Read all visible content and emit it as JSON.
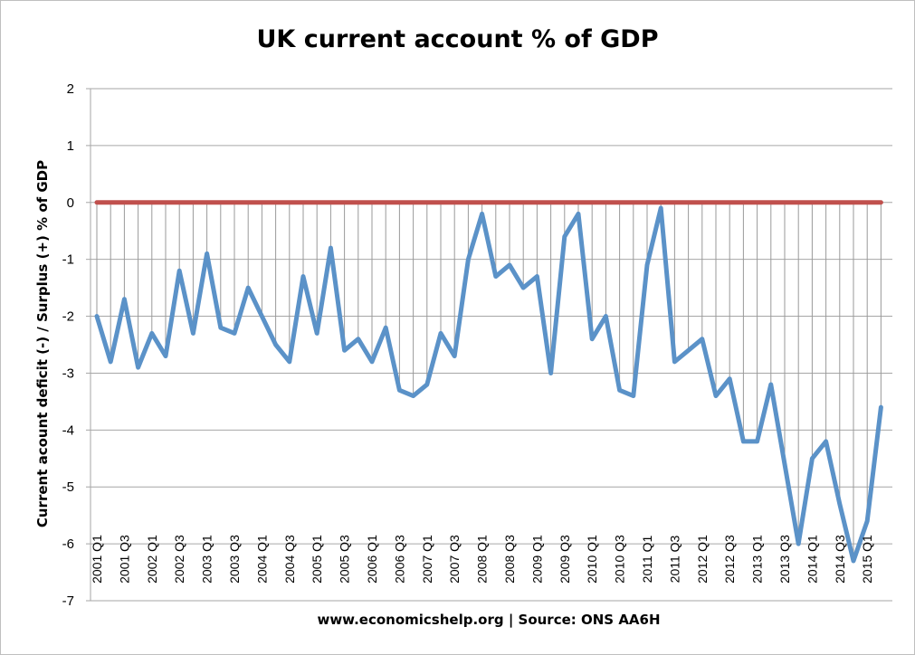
{
  "chart_data": {
    "type": "line",
    "title": "UK current account % of GDP",
    "xlabel": "www.economicshelp.org | Source: ONS AA6H",
    "ylabel": "Current acount  deficit (-) / Surplus (+) % of GDP",
    "ylim": [
      -7,
      2
    ],
    "yticks": [
      "2",
      "1",
      "0",
      "-1",
      "-2",
      "-3",
      "-4",
      "-5",
      "-6",
      "-7"
    ],
    "x_tick_labels": [
      "2001 Q1",
      "2001 Q3",
      "2002 Q1",
      "2002 Q3",
      "2003 Q1",
      "2003 Q3",
      "2004 Q1",
      "2004 Q3",
      "2005 Q1",
      "2005 Q3",
      "2006 Q1",
      "2006 Q3",
      "2007 Q1",
      "2007 Q3",
      "2008 Q1",
      "2008 Q3",
      "2009 Q1",
      "2009 Q3",
      "2010 Q1",
      "2010 Q3",
      "2011 Q1",
      "2011 Q3",
      "2012 Q1",
      "2012 Q3",
      "2013 Q1",
      "2013 Q3",
      "2014 Q1",
      "2014 Q3",
      "2015 Q1"
    ],
    "x": [
      "2001 Q1",
      "2001 Q2",
      "2001 Q3",
      "2001 Q4",
      "2002 Q1",
      "2002 Q2",
      "2002 Q3",
      "2002 Q4",
      "2003 Q1",
      "2003 Q2",
      "2003 Q3",
      "2003 Q4",
      "2004 Q1",
      "2004 Q2",
      "2004 Q3",
      "2004 Q4",
      "2005 Q1",
      "2005 Q2",
      "2005 Q3",
      "2005 Q4",
      "2006 Q1",
      "2006 Q2",
      "2006 Q3",
      "2006 Q4",
      "2007 Q1",
      "2007 Q2",
      "2007 Q3",
      "2007 Q4",
      "2008 Q1",
      "2008 Q2",
      "2008 Q3",
      "2008 Q4",
      "2009 Q1",
      "2009 Q2",
      "2009 Q3",
      "2009 Q4",
      "2010 Q1",
      "2010 Q2",
      "2010 Q3",
      "2010 Q4",
      "2011 Q1",
      "2011 Q2",
      "2011 Q3",
      "2011 Q4",
      "2012 Q1",
      "2012 Q2",
      "2012 Q3",
      "2012 Q4",
      "2013 Q1",
      "2013 Q2",
      "2013 Q3",
      "2013 Q4",
      "2014 Q1",
      "2014 Q2",
      "2014 Q3",
      "2014 Q4",
      "2015 Q1",
      "2015 Q2"
    ],
    "series": [
      {
        "color": "#5b92c8",
        "values": [
          -2.0,
          -2.8,
          -1.7,
          -2.9,
          -2.3,
          -2.7,
          -1.2,
          -2.3,
          -0.9,
          -2.2,
          -2.3,
          -1.5,
          -2.0,
          -2.5,
          -2.8,
          -1.3,
          -2.3,
          -0.8,
          -2.6,
          -2.4,
          -2.8,
          -2.2,
          -3.3,
          -3.4,
          -3.2,
          -2.3,
          -2.7,
          -1.0,
          -0.2,
          -1.3,
          -1.1,
          -1.5,
          -1.3,
          -3.0,
          -0.6,
          -0.2,
          -2.4,
          -2.0,
          -3.3,
          -3.4,
          -1.1,
          -0.1,
          -2.8,
          -2.6,
          -2.4,
          -3.4,
          -3.1,
          -4.2,
          -4.2,
          -3.2,
          -4.6,
          -6.0,
          -4.5,
          -4.2,
          -5.3,
          -6.3,
          -5.6,
          -3.6
        ]
      },
      {
        "color": "#c0504d",
        "values": [
          0,
          0,
          0,
          0,
          0,
          0,
          0,
          0,
          0,
          0,
          0,
          0,
          0,
          0,
          0,
          0,
          0,
          0,
          0,
          0,
          0,
          0,
          0,
          0,
          0,
          0,
          0,
          0,
          0,
          0,
          0,
          0,
          0,
          0,
          0,
          0,
          0,
          0,
          0,
          0,
          0,
          0,
          0,
          0,
          0,
          0,
          0,
          0,
          0,
          0,
          0,
          0,
          0,
          0,
          0,
          0,
          0,
          0
        ]
      }
    ],
    "grid": true,
    "drop_lines": true
  }
}
